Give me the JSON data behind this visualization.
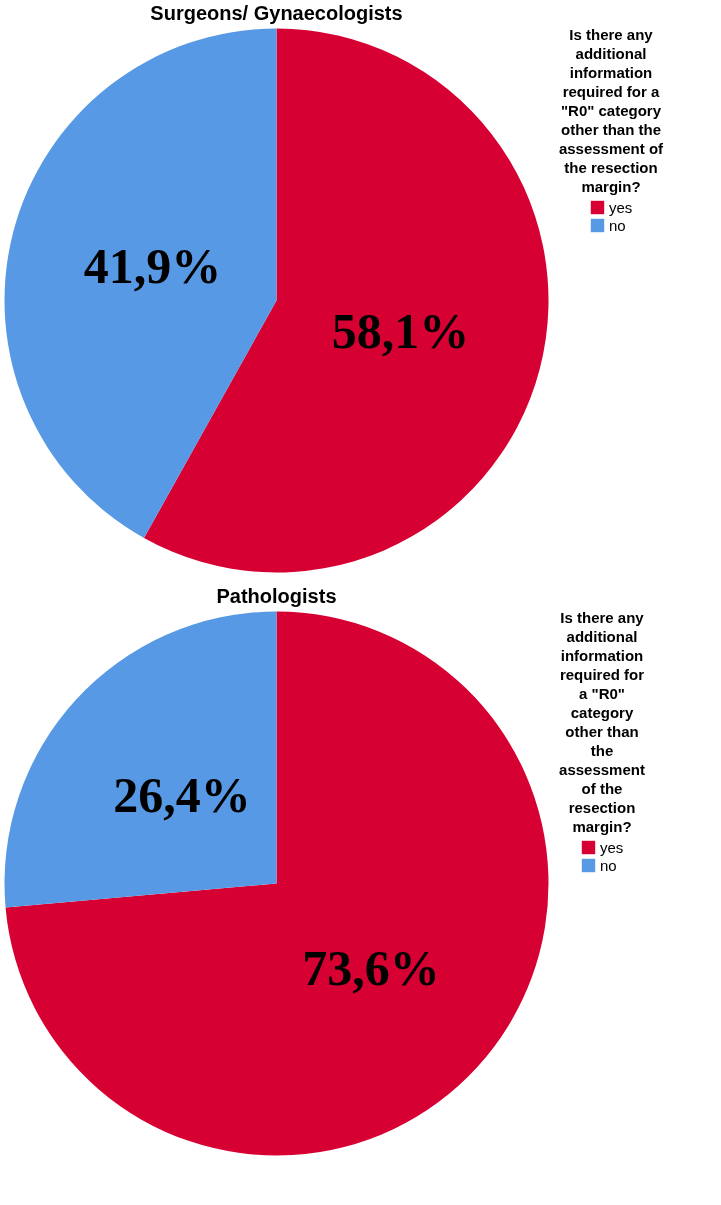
{
  "chart_data": [
    {
      "type": "pie",
      "title": "Surgeons/ Gynaecologists",
      "legend_title": "Is there any additional information required for a \"R0\" category other than the assessment of the resection margin?",
      "legend": "right",
      "categories": [
        "yes",
        "no"
      ],
      "values": [
        58.1,
        41.9
      ],
      "colors": [
        "#d70033",
        "#5799e5"
      ],
      "value_labels": [
        "58,1%",
        "41,9%"
      ]
    },
    {
      "type": "pie",
      "title": "Pathologists",
      "legend_title": "Is there any additional information required for a \"R0\" category other than the assessment of the resection margin?",
      "legend": "right",
      "categories": [
        "yes",
        "no"
      ],
      "values": [
        73.6,
        26.4
      ],
      "colors": [
        "#d70033",
        "#5799e5"
      ],
      "value_labels": [
        "73,6%",
        "26,4%"
      ]
    }
  ]
}
